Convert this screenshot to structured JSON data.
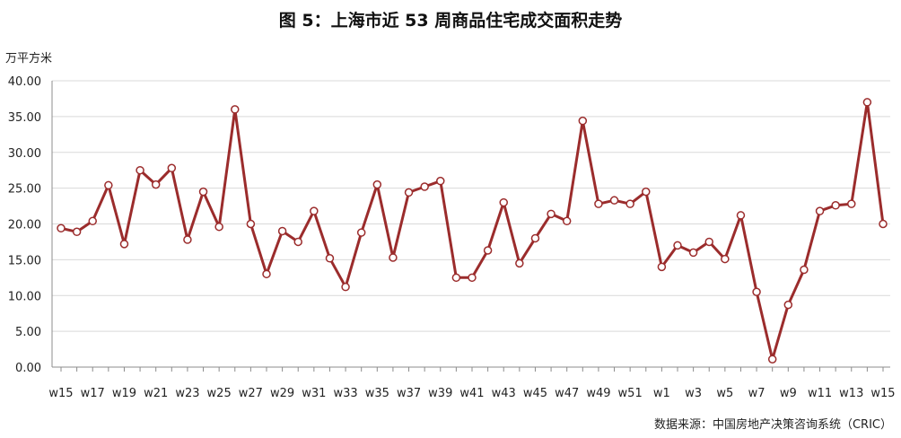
{
  "title": "图 5：上海市近 53 周商品住宅成交面积走势",
  "ylabel": "万平方米",
  "source": "数据来源：中国房地产决策咨询系统（CRIC）",
  "colors": {
    "line": "#9b2c2c",
    "grid": "#d9d9d9",
    "axis": "#8c8c8c",
    "marker_fill": "#ffffff"
  },
  "chart_data": {
    "type": "line",
    "ylim": [
      0,
      40
    ],
    "yticks": [
      "0.00",
      "5.00",
      "10.00",
      "15.00",
      "20.00",
      "25.00",
      "30.00",
      "35.00",
      "40.00"
    ],
    "grid": true,
    "legend": "none",
    "x": [
      "w15",
      "w16",
      "w17",
      "w18",
      "w19",
      "w20",
      "w21",
      "w22",
      "w23",
      "w24",
      "w25",
      "w26",
      "w27",
      "w28",
      "w29",
      "w30",
      "w31",
      "w32",
      "w33",
      "w34",
      "w35",
      "w36",
      "w37",
      "w38",
      "w39",
      "w40",
      "w41",
      "w42",
      "w43",
      "w44",
      "w45",
      "w46",
      "w47",
      "w48",
      "w49",
      "w50",
      "w51",
      "w52",
      "w1",
      "w2",
      "w3",
      "w4",
      "w5",
      "w6",
      "w7",
      "w8",
      "w9",
      "w10",
      "w11",
      "w12",
      "w13",
      "w14",
      "w15"
    ],
    "xtick_labels": [
      "w15",
      "",
      "w17",
      "",
      "w19",
      "",
      "w21",
      "",
      "w23",
      "",
      "w25",
      "",
      "w27",
      "",
      "w29",
      "",
      "w31",
      "",
      "w33",
      "",
      "w35",
      "",
      "w37",
      "",
      "w39",
      "",
      "w41",
      "",
      "w43",
      "",
      "w45",
      "",
      "w47",
      "",
      "w49",
      "",
      "w51",
      "",
      "w1",
      "",
      "w3",
      "",
      "w5",
      "",
      "w7",
      "",
      "w9",
      "",
      "w11",
      "",
      "w13",
      "",
      "w15"
    ],
    "values": [
      19.4,
      18.9,
      20.4,
      25.4,
      17.2,
      27.5,
      25.5,
      27.8,
      17.8,
      24.5,
      19.6,
      36.0,
      20.0,
      13.0,
      19.0,
      17.5,
      21.8,
      15.2,
      11.2,
      18.8,
      25.5,
      15.3,
      24.4,
      25.2,
      26.0,
      12.5,
      12.5,
      16.3,
      23.0,
      14.5,
      18.0,
      21.4,
      20.4,
      34.4,
      22.8,
      23.3,
      22.8,
      24.5,
      14.0,
      17.0,
      16.0,
      17.5,
      15.1,
      21.2,
      10.5,
      1.1,
      8.7,
      13.6,
      21.8,
      22.6,
      22.8,
      37.0,
      20.0
    ]
  }
}
